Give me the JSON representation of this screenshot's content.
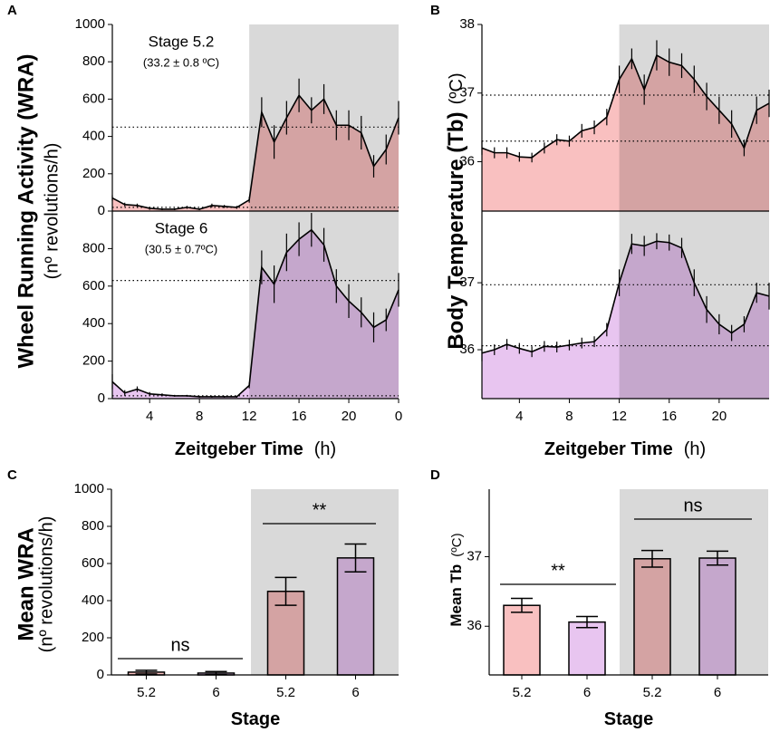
{
  "chart_data": [
    {
      "type": "area",
      "panel_label": "A",
      "stage_label": "Stage 5.2",
      "stage_temp": "(33.2 ± 0.8 ºC)",
      "ylabel": "Wheel Running Activity (WRA)",
      "ylabel_unit": "(nº revolutions/h)",
      "x": [
        1,
        2,
        3,
        4,
        5,
        6,
        7,
        8,
        9,
        10,
        11,
        12,
        13,
        14,
        15,
        16,
        17,
        18,
        19,
        20,
        21,
        22,
        23,
        24
      ],
      "values": [
        70,
        35,
        30,
        15,
        10,
        10,
        20,
        10,
        30,
        25,
        20,
        60,
        530,
        370,
        500,
        620,
        540,
        600,
        460,
        460,
        420,
        240,
        330,
        500
      ],
      "errors": [
        15,
        10,
        10,
        8,
        5,
        5,
        8,
        5,
        10,
        8,
        8,
        15,
        80,
        90,
        90,
        90,
        70,
        80,
        80,
        80,
        90,
        60,
        80,
        90
      ],
      "color": "#f9c0c0",
      "xlim": [
        1,
        24
      ],
      "ylim": [
        0,
        1000
      ],
      "yticks": [
        0,
        200,
        400,
        600,
        800,
        1000
      ],
      "reference_lines": [
        450,
        20
      ],
      "shaded_x": [
        12,
        24
      ]
    },
    {
      "type": "area",
      "stage_label": "Stage 6",
      "stage_temp": "(30.5 ± 0.7ºC)",
      "xlabel": "Zeitgeber Time",
      "xlabel_unit": "(h)",
      "x": [
        1,
        2,
        3,
        4,
        5,
        6,
        7,
        8,
        9,
        10,
        11,
        12,
        13,
        14,
        15,
        16,
        17,
        18,
        19,
        20,
        21,
        22,
        23,
        24
      ],
      "values": [
        90,
        30,
        50,
        25,
        20,
        15,
        15,
        10,
        10,
        10,
        10,
        70,
        700,
        610,
        780,
        850,
        900,
        820,
        600,
        520,
        460,
        380,
        420,
        580
      ],
      "errors": [
        40,
        15,
        15,
        10,
        8,
        5,
        5,
        5,
        5,
        5,
        5,
        15,
        90,
        100,
        100,
        90,
        90,
        90,
        90,
        90,
        80,
        80,
        60,
        90
      ],
      "color": "#e8c5f0",
      "xlim": [
        1,
        24
      ],
      "ylim": [
        0,
        1000
      ],
      "yticks": [
        0,
        200,
        400,
        600,
        800
      ],
      "xticks": [
        4,
        8,
        12,
        16,
        20,
        {
          "value": 24,
          "label": "0"
        }
      ],
      "reference_lines": [
        630,
        15
      ],
      "shaded_x": [
        12,
        24
      ]
    },
    {
      "type": "area",
      "panel_label": "B",
      "ylabel": "Body Temperature (Tb)",
      "ylabel_unit": "(ºC)",
      "x": [
        1,
        2,
        3,
        4,
        5,
        6,
        7,
        8,
        9,
        10,
        11,
        12,
        13,
        14,
        15,
        16,
        17,
        18,
        19,
        20,
        21,
        22,
        23,
        24
      ],
      "values": [
        36.2,
        36.13,
        36.13,
        36.07,
        36.06,
        36.2,
        36.32,
        36.3,
        36.45,
        36.5,
        36.65,
        37.2,
        37.5,
        37.05,
        37.55,
        37.45,
        37.4,
        37.2,
        36.95,
        36.75,
        36.55,
        36.2,
        36.75,
        36.85
      ],
      "errors": [
        0.1,
        0.08,
        0.08,
        0.07,
        0.07,
        0.08,
        0.08,
        0.08,
        0.1,
        0.1,
        0.12,
        0.2,
        0.15,
        0.22,
        0.22,
        0.2,
        0.18,
        0.2,
        0.2,
        0.2,
        0.2,
        0.12,
        0.2,
        0.2
      ],
      "color": "#f9c0c0",
      "xlim": [
        1,
        24
      ],
      "ylim": [
        35.28,
        38
      ],
      "yticks": [
        36,
        37,
        38
      ],
      "reference_lines": [
        36.97,
        36.3
      ],
      "shaded_x": [
        12,
        24
      ]
    },
    {
      "type": "area",
      "xlabel": "Zeitgeber Time",
      "xlabel_unit": "(h)",
      "x": [
        1,
        2,
        3,
        4,
        5,
        6,
        7,
        8,
        9,
        10,
        11,
        12,
        13,
        14,
        15,
        16,
        17,
        18,
        19,
        20,
        21,
        22,
        23,
        24
      ],
      "values": [
        35.95,
        36.0,
        36.08,
        36.02,
        35.97,
        36.05,
        36.04,
        36.07,
        36.1,
        36.12,
        36.3,
        37.0,
        37.58,
        37.55,
        37.62,
        37.6,
        37.52,
        37.0,
        36.6,
        36.38,
        36.25,
        36.38,
        36.85,
        36.8
      ],
      "errors": [
        0.12,
        0.08,
        0.08,
        0.08,
        0.08,
        0.08,
        0.08,
        0.08,
        0.08,
        0.08,
        0.1,
        0.2,
        0.15,
        0.15,
        0.12,
        0.12,
        0.15,
        0.2,
        0.2,
        0.15,
        0.12,
        0.12,
        0.15,
        0.2
      ],
      "color": "#e8c5f0",
      "xlim": [
        1,
        24
      ],
      "ylim": [
        35.27,
        38.07
      ],
      "yticks": [
        36,
        37
      ],
      "xticks": [
        4,
        8,
        12,
        16,
        20
      ],
      "reference_lines": [
        36.97,
        36.06
      ],
      "shaded_x": [
        12,
        24
      ]
    },
    {
      "type": "bar",
      "panel_label": "C",
      "ylabel": "Mean WRA",
      "ylabel_unit": "(nº revolutions/h)",
      "xlabel": "Stage",
      "categories": [
        "5.2",
        "6",
        "5.2",
        "6"
      ],
      "values": [
        15,
        10,
        450,
        630
      ],
      "errors": [
        10,
        8,
        75,
        75
      ],
      "colors": [
        "#f9c0c0",
        "#e8c5f0",
        "#f9c0c0",
        "#e8c5f0"
      ],
      "ylim": [
        0,
        1000
      ],
      "yticks": [
        0,
        200,
        400,
        600,
        800,
        1000
      ],
      "shaded_categories": [
        2,
        3
      ],
      "annotations": [
        "ns",
        "**"
      ]
    },
    {
      "type": "bar",
      "panel_label": "D",
      "ylabel": "Mean Tb",
      "ylabel_unit": "(ºC)",
      "xlabel": "Stage",
      "categories": [
        "5.2",
        "6",
        "5.2",
        "6"
      ],
      "values": [
        36.3,
        36.06,
        36.97,
        36.98
      ],
      "errors": [
        0.1,
        0.08,
        0.12,
        0.1
      ],
      "colors": [
        "#f9c0c0",
        "#e8c5f0",
        "#f9c0c0",
        "#e8c5f0"
      ],
      "ylim": [
        35.3,
        37.97
      ],
      "yticks": [
        36,
        37
      ],
      "shaded_categories": [
        2,
        3
      ],
      "annotations": [
        "**",
        "ns"
      ]
    }
  ]
}
